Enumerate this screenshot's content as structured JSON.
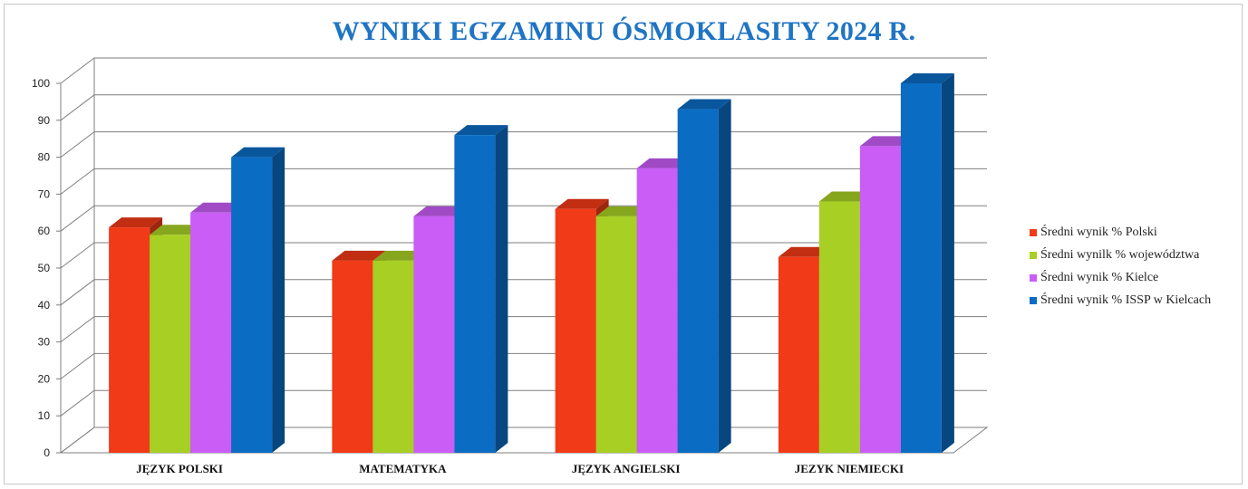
{
  "chart_data": {
    "type": "bar",
    "title": "WYNIKI EGZAMINU ÓSMOKLASITY 2024 R.",
    "categories": [
      "JĘZYK POLSKI",
      "MATEMATYKA",
      "JĘZYK ANGIELSKI",
      "JEZYK NIEMIECKI"
    ],
    "series": [
      {
        "name": "Średni wynik % Polski",
        "color": "#f13a17",
        "values": [
          61,
          52,
          66,
          53
        ]
      },
      {
        "name": "Średni wynilk % województwa",
        "color": "#a8cf24",
        "values": [
          59,
          52,
          64,
          68
        ]
      },
      {
        "name": "Średni wynik % Kielce",
        "color": "#c95df6",
        "values": [
          65,
          64,
          77,
          83
        ]
      },
      {
        "name": "Średni wynik % ISSP w Kielcach",
        "color": "#0b6cc3",
        "values": [
          80,
          86,
          93,
          100
        ]
      }
    ],
    "ylim": [
      0,
      100
    ],
    "yticks": [
      0,
      10,
      20,
      30,
      40,
      50,
      60,
      70,
      80,
      90,
      100
    ],
    "grid": true,
    "legend_position": "right",
    "style": "3d-clustered-column"
  }
}
